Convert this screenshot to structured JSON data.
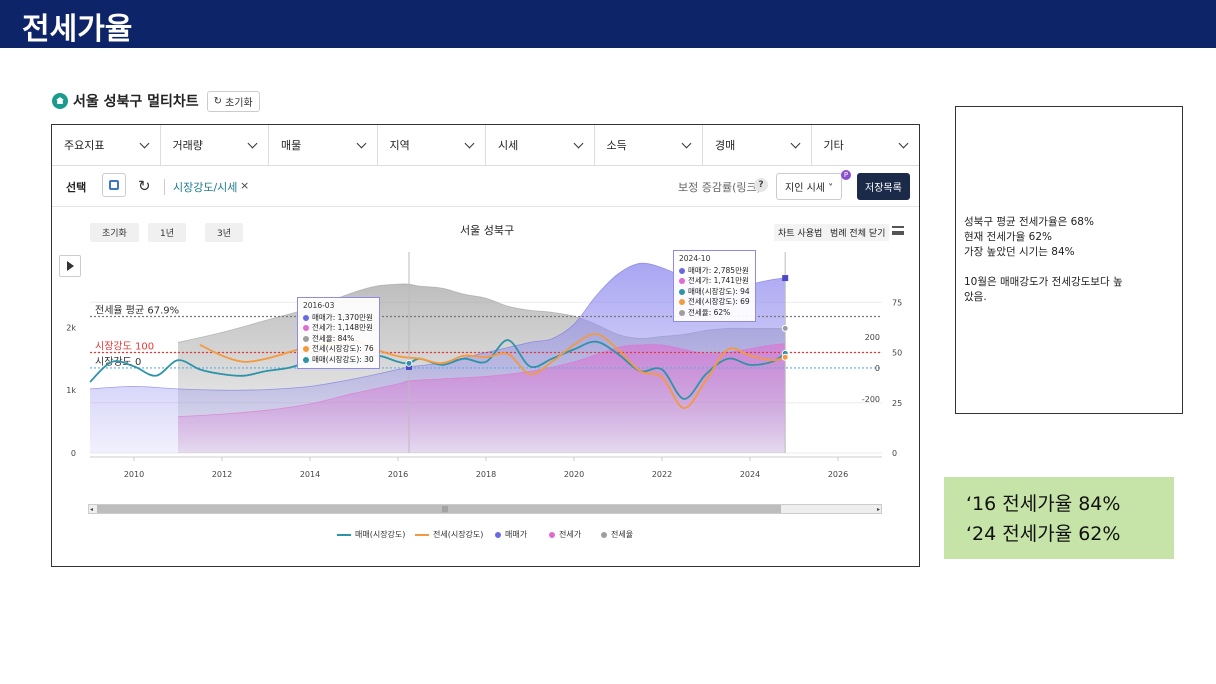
{
  "slide": {
    "title": "전세가율"
  },
  "panel": {
    "title": "서울 성북구 멀티차트",
    "reset_label": "초기화"
  },
  "menu": {
    "items": [
      "주요지표",
      "거래량",
      "매물",
      "지역",
      "시세",
      "소득",
      "경매",
      "기타"
    ]
  },
  "selection": {
    "label": "선택",
    "chip": "시장강도/시세",
    "chip_remove": "×",
    "bojeong": "보정 증감률(링크)",
    "help": "?",
    "jiin": "지인 시세 ˅",
    "badge": "P",
    "save": "저장목록"
  },
  "chart_controls": {
    "range_buttons": [
      "초기화",
      "1년",
      "3년"
    ],
    "usage": "차트 사용법",
    "legend_close": "범례 전체 닫기"
  },
  "chart_data": {
    "type": "line",
    "title": "서울 성북구",
    "x_range": [
      2009,
      2027
    ],
    "x_ticks": [
      "2010",
      "2012",
      "2014",
      "2016",
      "2018",
      "2020",
      "2022",
      "2024",
      "2026"
    ],
    "y_left_ticks": [
      "0",
      "1k",
      "2k"
    ],
    "y_left_range": [
      0,
      3200
    ],
    "y_right_outer_ticks": [
      "0",
      "25",
      "50",
      "75"
    ],
    "y_right_outer_range": [
      0,
      100
    ],
    "y_right_inner_ticks": [
      "-200",
      "0",
      "200"
    ],
    "y_right_inner_range": [
      -550,
      750
    ],
    "reference_lines": [
      {
        "label": "전세율 평균 67.9%",
        "color": "#777777"
      },
      {
        "label": "시장강도 100",
        "color": "#e53935"
      },
      {
        "label": "시장강도 0",
        "color": "#5aaee0"
      }
    ],
    "series": [
      {
        "name": "매매(시장강도)",
        "color": "#2f93a8",
        "x": [
          2009.0,
          2009.5,
          2010.0,
          2010.5,
          2011.0,
          2011.5,
          2012.0,
          2012.5,
          2013.0,
          2013.5,
          2014.0,
          2014.5,
          2015.0,
          2015.5,
          2016.0,
          2016.25,
          2016.5,
          2017.0,
          2017.5,
          2018.0,
          2018.5,
          2019.0,
          2019.5,
          2020.0,
          2020.5,
          2021.0,
          2021.5,
          2022.0,
          2022.5,
          2023.0,
          2023.5,
          2024.0,
          2024.5,
          2024.8
        ],
        "y": [
          -90,
          40,
          10,
          -50,
          50,
          -10,
          -40,
          -50,
          -20,
          0,
          40,
          60,
          30,
          80,
          40,
          30,
          60,
          20,
          60,
          40,
          180,
          10,
          60,
          120,
          170,
          90,
          -20,
          -10,
          -200,
          -40,
          60,
          20,
          40,
          94
        ]
      },
      {
        "name": "전세(시장강도)",
        "color": "#f39a3e",
        "x": [
          2011.5,
          2012.0,
          2012.5,
          2013.0,
          2013.5,
          2014.0,
          2014.5,
          2015.0,
          2015.5,
          2016.0,
          2016.5,
          2017.0,
          2017.5,
          2018.0,
          2018.5,
          2019.0,
          2019.5,
          2020.0,
          2020.5,
          2021.0,
          2021.5,
          2022.0,
          2022.5,
          2023.0,
          2023.5,
          2024.0,
          2024.5,
          2024.8
        ],
        "y": [
          150,
          80,
          40,
          60,
          100,
          140,
          160,
          180,
          120,
          76,
          60,
          30,
          80,
          70,
          90,
          -40,
          40,
          150,
          220,
          120,
          -20,
          -60,
          -260,
          -80,
          120,
          80,
          50,
          69
        ]
      },
      {
        "name": "매매가",
        "color": "#6a6ae0",
        "fill": "#b9b6f4",
        "x": [
          2009.0,
          2010.0,
          2011.0,
          2012.0,
          2013.0,
          2014.0,
          2015.0,
          2016.0,
          2016.25,
          2017.0,
          2018.0,
          2019.0,
          2019.5,
          2020.0,
          2020.5,
          2021.0,
          2021.5,
          2022.0,
          2022.5,
          2023.0,
          2023.5,
          2024.0,
          2024.5,
          2024.8
        ],
        "y": [
          1020,
          1060,
          1020,
          1000,
          1010,
          1060,
          1180,
          1330,
          1370,
          1440,
          1600,
          1760,
          1820,
          2050,
          2500,
          2850,
          3020,
          2950,
          2780,
          2500,
          2550,
          2680,
          2760,
          2785
        ]
      },
      {
        "name": "전세가",
        "color": "#e06ad0",
        "fill": "#e3b2e0",
        "x": [
          2011.0,
          2012.0,
          2013.0,
          2014.0,
          2015.0,
          2016.0,
          2016.25,
          2017.0,
          2018.0,
          2019.0,
          2020.0,
          2021.0,
          2021.5,
          2022.0,
          2022.5,
          2023.0,
          2023.5,
          2024.0,
          2024.5,
          2024.8
        ],
        "y": [
          580,
          620,
          680,
          780,
          950,
          1100,
          1148,
          1180,
          1220,
          1300,
          1450,
          1680,
          1720,
          1720,
          1650,
          1580,
          1600,
          1660,
          1720,
          1741
        ]
      },
      {
        "name": "전세율",
        "color": "#9e9e9e",
        "fill": "#c9c9c9",
        "x": [
          2011.0,
          2012.0,
          2013.0,
          2014.0,
          2014.5,
          2015.0,
          2015.5,
          2016.0,
          2016.25,
          2016.5,
          2017.0,
          2017.5,
          2018.0,
          2018.5,
          2019.0,
          2019.5,
          2020.0,
          2020.5,
          2021.0,
          2021.5,
          2022.0,
          2022.5,
          2023.0,
          2023.5,
          2024.0,
          2024.5,
          2024.8
        ],
        "y": [
          55,
          60,
          66,
          72,
          76,
          80,
          83,
          84,
          84,
          83,
          82,
          79,
          77,
          73,
          71,
          70,
          68,
          64,
          59,
          57,
          58,
          59,
          61,
          62,
          62,
          62,
          62
        ]
      }
    ],
    "tooltips": [
      {
        "date": "2016-03",
        "rows": [
          {
            "label": "매매가: 1,370만원",
            "color": "#6a6ae0"
          },
          {
            "label": "전세가: 1,148만원",
            "color": "#e06ad0"
          },
          {
            "label": "전세율: 84%",
            "color": "#9e9e9e"
          },
          {
            "label": "전세(시장강도): 76",
            "color": "#f39a3e"
          },
          {
            "label": "매매(시장강도): 30",
            "color": "#2f93a8"
          }
        ]
      },
      {
        "date": "2024-10",
        "rows": [
          {
            "label": "매매가: 2,785만원",
            "color": "#6a6ae0"
          },
          {
            "label": "전세가: 1,741만원",
            "color": "#e06ad0"
          },
          {
            "label": "매매(시장강도): 94",
            "color": "#2f93a8"
          },
          {
            "label": "전세(시장강도): 69",
            "color": "#f39a3e"
          },
          {
            "label": "전세율: 62%",
            "color": "#9e9e9e"
          }
        ]
      }
    ],
    "legend": [
      {
        "name": "매매(시장강도)",
        "color": "#2f93a8",
        "kind": "line"
      },
      {
        "name": "전세(시장강도)",
        "color": "#f39a3e",
        "kind": "line"
      },
      {
        "name": "매매가",
        "color": "#6a6ae0",
        "kind": "dot"
      },
      {
        "name": "전세가",
        "color": "#e06ad0",
        "kind": "dot"
      },
      {
        "name": "전세율",
        "color": "#9e9e9e",
        "kind": "dot"
      }
    ]
  },
  "notes": {
    "lines": [
      "성북구 평균 전세가율은 68%",
      "현재 전세가율 62%",
      "가장 높았던 시기는 84%",
      "",
      "10월은 매매강도가 전세강도보다 높",
      "았음."
    ]
  },
  "highlight": {
    "lines": [
      "‘16 전세가율 84%",
      "‘24 전세가율 62%"
    ]
  }
}
